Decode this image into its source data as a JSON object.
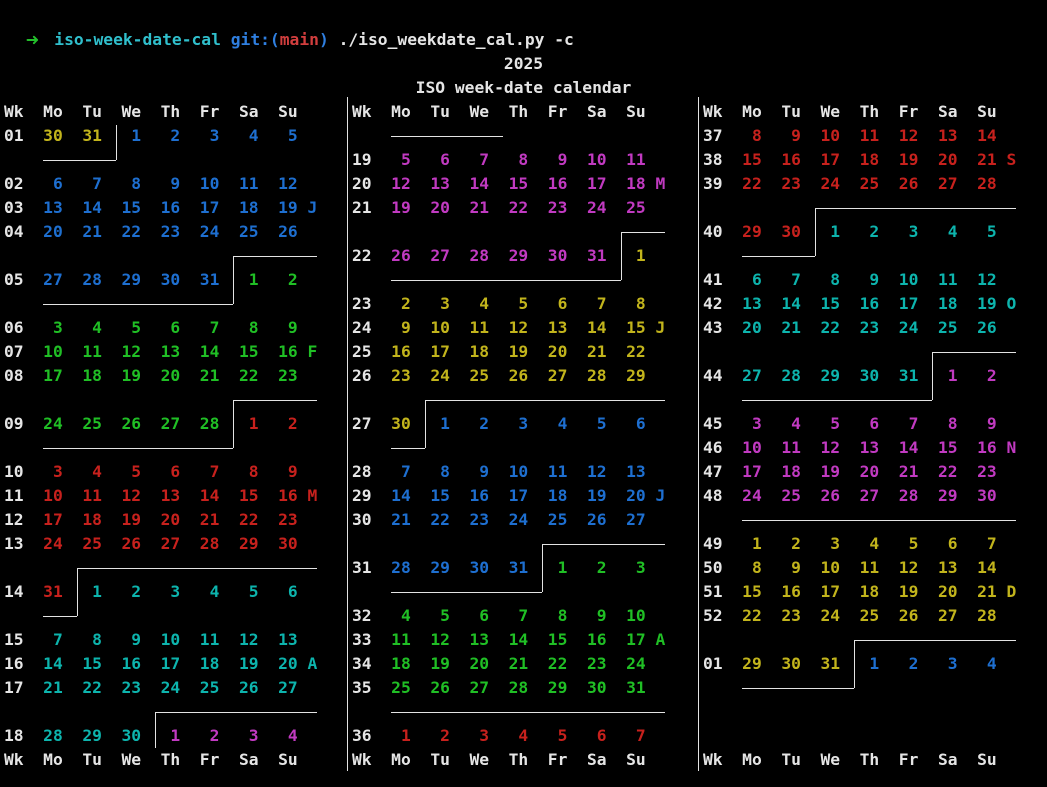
{
  "terminal": {
    "prompt": {
      "arrow": "➜",
      "directory": "iso-week-date-cal",
      "git_prefix": "git:(",
      "git_branch": "main",
      "git_suffix": ")",
      "command": "./iso_weekdate_cal.py -c"
    },
    "title_year": "2025",
    "title": "ISO week-date calendar"
  },
  "palette": {
    "white": "#e5e5e5",
    "blue": "#1e6fd0",
    "green": "#20bf25",
    "red": "#c7211d",
    "teal": "#0db4ad",
    "magenta": "#c13ac1",
    "yellow": "#c2b41c",
    "prompt_green": "#23bf2b",
    "prompt_cyan": "#30bfcc",
    "prompt_blue": "#2f7fe0",
    "prompt_red": "#d23e3e",
    "line": "#e3e3e3",
    "background": "#000000"
  },
  "weekday_header": [
    "Wk",
    "Mo",
    "Tu",
    "We",
    "Th",
    "Fr",
    "Sa",
    "Su"
  ],
  "calendar": {
    "columns": [
      {
        "rows": [
          {
            "t": "h"
          },
          {
            "t": "w",
            "wk": "01",
            "d": [
              "30",
              "31",
              "1",
              "2",
              "3",
              "4",
              "5"
            ],
            "c1": "yellow",
            "c2": "blue",
            "brk": 2,
            "top": false
          },
          {
            "t": "g"
          },
          {
            "t": "w",
            "wk": "02",
            "d": [
              "6",
              "7",
              "8",
              "9",
              "10",
              "11",
              "12"
            ],
            "c1": "blue"
          },
          {
            "t": "w",
            "wk": "03",
            "d": [
              "13",
              "14",
              "15",
              "16",
              "17",
              "18",
              "19"
            ],
            "c1": "blue",
            "tag": "J"
          },
          {
            "t": "w",
            "wk": "04",
            "d": [
              "20",
              "21",
              "22",
              "23",
              "24",
              "25",
              "26"
            ],
            "c1": "blue"
          },
          {
            "t": "g"
          },
          {
            "t": "w",
            "wk": "05",
            "d": [
              "27",
              "28",
              "29",
              "30",
              "31",
              "1",
              "2"
            ],
            "c1": "blue",
            "c2": "green",
            "brk": 5
          },
          {
            "t": "g"
          },
          {
            "t": "w",
            "wk": "06",
            "d": [
              "3",
              "4",
              "5",
              "6",
              "7",
              "8",
              "9"
            ],
            "c1": "green"
          },
          {
            "t": "w",
            "wk": "07",
            "d": [
              "10",
              "11",
              "12",
              "13",
              "14",
              "15",
              "16"
            ],
            "c1": "green",
            "tag": "F"
          },
          {
            "t": "w",
            "wk": "08",
            "d": [
              "17",
              "18",
              "19",
              "20",
              "21",
              "22",
              "23"
            ],
            "c1": "green"
          },
          {
            "t": "g"
          },
          {
            "t": "w",
            "wk": "09",
            "d": [
              "24",
              "25",
              "26",
              "27",
              "28",
              "1",
              "2"
            ],
            "c1": "green",
            "c2": "red",
            "brk": 5
          },
          {
            "t": "g"
          },
          {
            "t": "w",
            "wk": "10",
            "d": [
              "3",
              "4",
              "5",
              "6",
              "7",
              "8",
              "9"
            ],
            "c1": "red"
          },
          {
            "t": "w",
            "wk": "11",
            "d": [
              "10",
              "11",
              "12",
              "13",
              "14",
              "15",
              "16"
            ],
            "c1": "red",
            "tag": "M"
          },
          {
            "t": "w",
            "wk": "12",
            "d": [
              "17",
              "18",
              "19",
              "20",
              "21",
              "22",
              "23"
            ],
            "c1": "red"
          },
          {
            "t": "w",
            "wk": "13",
            "d": [
              "24",
              "25",
              "26",
              "27",
              "28",
              "29",
              "30"
            ],
            "c1": "red"
          },
          {
            "t": "g"
          },
          {
            "t": "w",
            "wk": "14",
            "d": [
              "31",
              "1",
              "2",
              "3",
              "4",
              "5",
              "6"
            ],
            "c1": "red",
            "c2": "teal",
            "brk": 1
          },
          {
            "t": "g"
          },
          {
            "t": "w",
            "wk": "15",
            "d": [
              "7",
              "8",
              "9",
              "10",
              "11",
              "12",
              "13"
            ],
            "c1": "teal"
          },
          {
            "t": "w",
            "wk": "16",
            "d": [
              "14",
              "15",
              "16",
              "17",
              "18",
              "19",
              "20"
            ],
            "c1": "teal",
            "tag": "A"
          },
          {
            "t": "w",
            "wk": "17",
            "d": [
              "21",
              "22",
              "23",
              "24",
              "25",
              "26",
              "27"
            ],
            "c1": "teal"
          },
          {
            "t": "g"
          },
          {
            "t": "w",
            "wk": "18",
            "d": [
              "28",
              "29",
              "30",
              "1",
              "2",
              "3",
              "4"
            ],
            "c1": "teal",
            "c2": "magenta",
            "brk": 3,
            "bot": false
          },
          {
            "t": "f"
          }
        ]
      },
      {
        "rows": [
          {
            "t": "h"
          },
          {
            "t": "g",
            "cont": 3
          },
          {
            "t": "w",
            "wk": "19",
            "d": [
              "5",
              "6",
              "7",
              "8",
              "9",
              "10",
              "11"
            ],
            "c1": "magenta"
          },
          {
            "t": "w",
            "wk": "20",
            "d": [
              "12",
              "13",
              "14",
              "15",
              "16",
              "17",
              "18"
            ],
            "c1": "magenta",
            "tag": "M"
          },
          {
            "t": "w",
            "wk": "21",
            "d": [
              "19",
              "20",
              "21",
              "22",
              "23",
              "24",
              "25"
            ],
            "c1": "magenta"
          },
          {
            "t": "g"
          },
          {
            "t": "w",
            "wk": "22",
            "d": [
              "26",
              "27",
              "28",
              "29",
              "30",
              "31",
              "1"
            ],
            "c1": "magenta",
            "c2": "yellow",
            "brk": 6
          },
          {
            "t": "g"
          },
          {
            "t": "w",
            "wk": "23",
            "d": [
              "2",
              "3",
              "4",
              "5",
              "6",
              "7",
              "8"
            ],
            "c1": "yellow"
          },
          {
            "t": "w",
            "wk": "24",
            "d": [
              "9",
              "10",
              "11",
              "12",
              "13",
              "14",
              "15"
            ],
            "c1": "yellow",
            "tag": "J"
          },
          {
            "t": "w",
            "wk": "25",
            "d": [
              "16",
              "17",
              "18",
              "19",
              "20",
              "21",
              "22"
            ],
            "c1": "yellow"
          },
          {
            "t": "w",
            "wk": "26",
            "d": [
              "23",
              "24",
              "25",
              "26",
              "27",
              "28",
              "29"
            ],
            "c1": "yellow"
          },
          {
            "t": "g"
          },
          {
            "t": "w",
            "wk": "27",
            "d": [
              "30",
              "1",
              "2",
              "3",
              "4",
              "5",
              "6"
            ],
            "c1": "yellow",
            "c2": "blue",
            "brk": 1
          },
          {
            "t": "g"
          },
          {
            "t": "w",
            "wk": "28",
            "d": [
              "7",
              "8",
              "9",
              "10",
              "11",
              "12",
              "13"
            ],
            "c1": "blue"
          },
          {
            "t": "w",
            "wk": "29",
            "d": [
              "14",
              "15",
              "16",
              "17",
              "18",
              "19",
              "20"
            ],
            "c1": "blue",
            "tag": "J"
          },
          {
            "t": "w",
            "wk": "30",
            "d": [
              "21",
              "22",
              "23",
              "24",
              "25",
              "26",
              "27"
            ],
            "c1": "blue"
          },
          {
            "t": "g"
          },
          {
            "t": "w",
            "wk": "31",
            "d": [
              "28",
              "29",
              "30",
              "31",
              "1",
              "2",
              "3"
            ],
            "c1": "blue",
            "c2": "green",
            "brk": 4
          },
          {
            "t": "g"
          },
          {
            "t": "w",
            "wk": "32",
            "d": [
              "4",
              "5",
              "6",
              "7",
              "8",
              "9",
              "10"
            ],
            "c1": "green"
          },
          {
            "t": "w",
            "wk": "33",
            "d": [
              "11",
              "12",
              "13",
              "14",
              "15",
              "16",
              "17"
            ],
            "c1": "green",
            "tag": "A"
          },
          {
            "t": "w",
            "wk": "34",
            "d": [
              "18",
              "19",
              "20",
              "21",
              "22",
              "23",
              "24"
            ],
            "c1": "green"
          },
          {
            "t": "w",
            "wk": "35",
            "d": [
              "25",
              "26",
              "27",
              "28",
              "29",
              "30",
              "31"
            ],
            "c1": "green"
          },
          {
            "t": "g",
            "full": true
          },
          {
            "t": "w",
            "wk": "36",
            "d": [
              "1",
              "2",
              "3",
              "4",
              "5",
              "6",
              "7"
            ],
            "c1": "red"
          },
          {
            "t": "f"
          }
        ]
      },
      {
        "rows": [
          {
            "t": "h"
          },
          {
            "t": "w",
            "wk": "37",
            "d": [
              "8",
              "9",
              "10",
              "11",
              "12",
              "13",
              "14"
            ],
            "c1": "red"
          },
          {
            "t": "w",
            "wk": "38",
            "d": [
              "15",
              "16",
              "17",
              "18",
              "19",
              "20",
              "21"
            ],
            "c1": "red",
            "tag": "S"
          },
          {
            "t": "w",
            "wk": "39",
            "d": [
              "22",
              "23",
              "24",
              "25",
              "26",
              "27",
              "28"
            ],
            "c1": "red"
          },
          {
            "t": "g"
          },
          {
            "t": "w",
            "wk": "40",
            "d": [
              "29",
              "30",
              "1",
              "2",
              "3",
              "4",
              "5"
            ],
            "c1": "red",
            "c2": "teal",
            "brk": 2
          },
          {
            "t": "g"
          },
          {
            "t": "w",
            "wk": "41",
            "d": [
              "6",
              "7",
              "8",
              "9",
              "10",
              "11",
              "12"
            ],
            "c1": "teal"
          },
          {
            "t": "w",
            "wk": "42",
            "d": [
              "13",
              "14",
              "15",
              "16",
              "17",
              "18",
              "19"
            ],
            "c1": "teal",
            "tag": "O"
          },
          {
            "t": "w",
            "wk": "43",
            "d": [
              "20",
              "21",
              "22",
              "23",
              "24",
              "25",
              "26"
            ],
            "c1": "teal"
          },
          {
            "t": "g"
          },
          {
            "t": "w",
            "wk": "44",
            "d": [
              "27",
              "28",
              "29",
              "30",
              "31",
              "1",
              "2"
            ],
            "c1": "teal",
            "c2": "magenta",
            "brk": 5
          },
          {
            "t": "g"
          },
          {
            "t": "w",
            "wk": "45",
            "d": [
              "3",
              "4",
              "5",
              "6",
              "7",
              "8",
              "9"
            ],
            "c1": "magenta"
          },
          {
            "t": "w",
            "wk": "46",
            "d": [
              "10",
              "11",
              "12",
              "13",
              "14",
              "15",
              "16"
            ],
            "c1": "magenta",
            "tag": "N"
          },
          {
            "t": "w",
            "wk": "47",
            "d": [
              "17",
              "18",
              "19",
              "20",
              "21",
              "22",
              "23"
            ],
            "c1": "magenta"
          },
          {
            "t": "w",
            "wk": "48",
            "d": [
              "24",
              "25",
              "26",
              "27",
              "28",
              "29",
              "30"
            ],
            "c1": "magenta"
          },
          {
            "t": "g",
            "full": true
          },
          {
            "t": "w",
            "wk": "49",
            "d": [
              "1",
              "2",
              "3",
              "4",
              "5",
              "6",
              "7"
            ],
            "c1": "yellow"
          },
          {
            "t": "w",
            "wk": "50",
            "d": [
              "8",
              "9",
              "10",
              "11",
              "12",
              "13",
              "14"
            ],
            "c1": "yellow"
          },
          {
            "t": "w",
            "wk": "51",
            "d": [
              "15",
              "16",
              "17",
              "18",
              "19",
              "20",
              "21"
            ],
            "c1": "yellow",
            "tag": "D"
          },
          {
            "t": "w",
            "wk": "52",
            "d": [
              "22",
              "23",
              "24",
              "25",
              "26",
              "27",
              "28"
            ],
            "c1": "yellow"
          },
          {
            "t": "g"
          },
          {
            "t": "w",
            "wk": "01",
            "d": [
              "29",
              "30",
              "31",
              "1",
              "2",
              "3",
              "4"
            ],
            "c1": "yellow",
            "c2": "blue",
            "brk": 3
          },
          {
            "t": "g"
          },
          {
            "t": "g"
          },
          {
            "t": "g"
          },
          {
            "t": "f"
          }
        ]
      }
    ]
  }
}
